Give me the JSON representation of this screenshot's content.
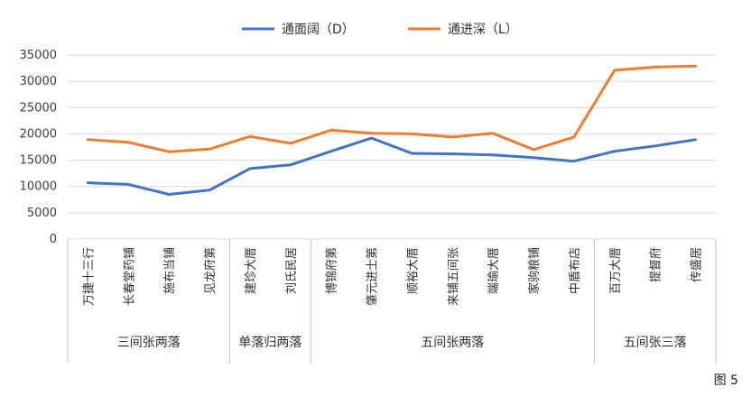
{
  "figure_label": "图 5",
  "chart_data": {
    "type": "line",
    "title": "",
    "xlabel": "",
    "ylabel": "",
    "ylim": [
      0,
      35000
    ],
    "yticks": [
      0,
      5000,
      10000,
      15000,
      20000,
      25000,
      30000,
      35000
    ],
    "grid": true,
    "legend_position": "top",
    "categories": [
      "万捷十三行",
      "长春堂药铺",
      "施布当铺",
      "见龙府第",
      "建珍大厝",
      "刘氏民居",
      "博锦府第",
      "肇元进士第",
      "顺裕大厝",
      "来铺五间张",
      "端瑜大厝",
      "家驹粮铺",
      "中盾布店",
      "百万大厝",
      "提督府",
      "传盛居"
    ],
    "groups": [
      {
        "label": "三间张两落",
        "count": 4
      },
      {
        "label": "单落归两落",
        "count": 2
      },
      {
        "label": "五间张两落",
        "count": 7
      },
      {
        "label": "五间张三落",
        "count": 3
      }
    ],
    "series": [
      {
        "name": "通面阔（D）",
        "color": "#4472C4",
        "values": [
          10700,
          10400,
          8500,
          9300,
          13400,
          14100,
          16700,
          19200,
          16300,
          16200,
          16000,
          15500,
          14800,
          16700,
          17700,
          18900
        ]
      },
      {
        "name": "通进深（L）",
        "color": "#ED7D31",
        "values": [
          18900,
          18400,
          16600,
          17100,
          19500,
          18200,
          20700,
          20100,
          20000,
          19400,
          20100,
          17000,
          19400,
          32100,
          32700,
          32900
        ]
      }
    ]
  }
}
